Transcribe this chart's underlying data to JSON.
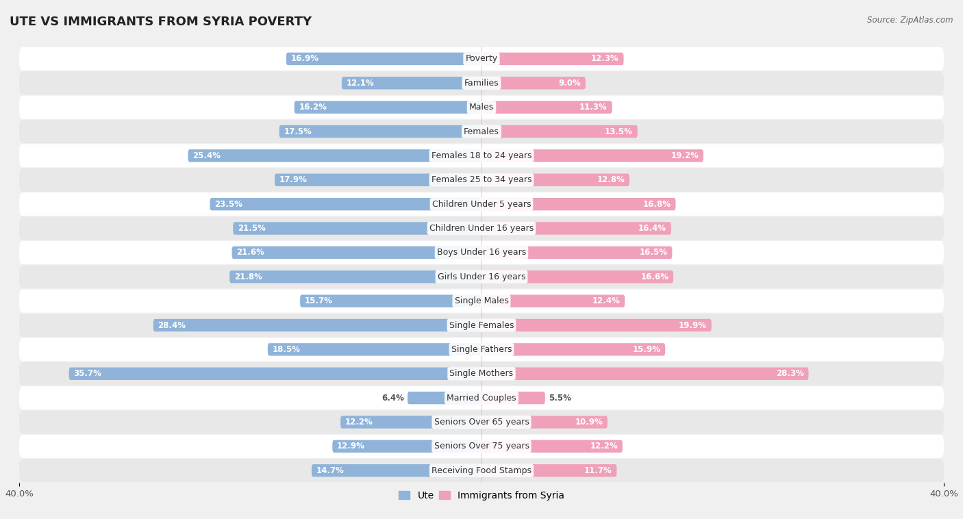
{
  "title": "UTE VS IMMIGRANTS FROM SYRIA POVERTY",
  "source": "Source: ZipAtlas.com",
  "categories": [
    "Poverty",
    "Families",
    "Males",
    "Females",
    "Females 18 to 24 years",
    "Females 25 to 34 years",
    "Children Under 5 years",
    "Children Under 16 years",
    "Boys Under 16 years",
    "Girls Under 16 years",
    "Single Males",
    "Single Females",
    "Single Fathers",
    "Single Mothers",
    "Married Couples",
    "Seniors Over 65 years",
    "Seniors Over 75 years",
    "Receiving Food Stamps"
  ],
  "ute_values": [
    16.9,
    12.1,
    16.2,
    17.5,
    25.4,
    17.9,
    23.5,
    21.5,
    21.6,
    21.8,
    15.7,
    28.4,
    18.5,
    35.7,
    6.4,
    12.2,
    12.9,
    14.7
  ],
  "syria_values": [
    12.3,
    9.0,
    11.3,
    13.5,
    19.2,
    12.8,
    16.8,
    16.4,
    16.5,
    16.6,
    12.4,
    19.9,
    15.9,
    28.3,
    5.5,
    10.9,
    12.2,
    11.7
  ],
  "ute_color": "#8fb3d9",
  "syria_color": "#f0a0b8",
  "bg_color": "#f0f0f0",
  "row_color_even": "#ffffff",
  "row_color_odd": "#e8e8e8",
  "axis_limit": 40.0,
  "title_fontsize": 13,
  "label_fontsize": 9,
  "value_fontsize": 8.5,
  "legend_labels": [
    "Ute",
    "Immigrants from Syria"
  ]
}
